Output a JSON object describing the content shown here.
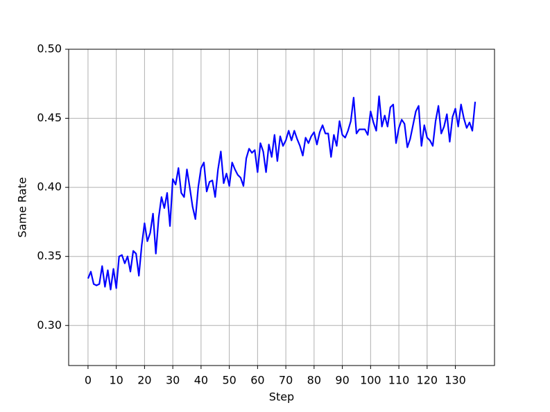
{
  "chart_data": {
    "type": "line",
    "xlabel": "Step",
    "ylabel": "Same Rate",
    "x": [
      0,
      1,
      2,
      3,
      4,
      5,
      6,
      7,
      8,
      9,
      10,
      11,
      12,
      13,
      14,
      15,
      16,
      17,
      18,
      19,
      20,
      21,
      22,
      23,
      24,
      25,
      26,
      27,
      28,
      29,
      30,
      31,
      32,
      33,
      34,
      35,
      36,
      37,
      38,
      39,
      40,
      41,
      42,
      43,
      44,
      45,
      46,
      47,
      48,
      49,
      50,
      51,
      52,
      53,
      54,
      55,
      56,
      57,
      58,
      59,
      60,
      61,
      62,
      63,
      64,
      65,
      66,
      67,
      68,
      69,
      70,
      71,
      72,
      73,
      74,
      75,
      76,
      77,
      78,
      79,
      80,
      81,
      82,
      83,
      84,
      85,
      86,
      87,
      88,
      89,
      90,
      91,
      92,
      93,
      94,
      95,
      96,
      97,
      98,
      99,
      100,
      101,
      102,
      103,
      104,
      105,
      106,
      107,
      108,
      109,
      110,
      111,
      112,
      113,
      114,
      115,
      116,
      117,
      118,
      119,
      120,
      121,
      122,
      123,
      124,
      125,
      126,
      127,
      128,
      129,
      130,
      131,
      132,
      133,
      134,
      135,
      136,
      137
    ],
    "values": [
      0.334,
      0.339,
      0.33,
      0.329,
      0.33,
      0.343,
      0.328,
      0.34,
      0.326,
      0.341,
      0.327,
      0.35,
      0.351,
      0.345,
      0.35,
      0.339,
      0.354,
      0.352,
      0.336,
      0.358,
      0.374,
      0.361,
      0.367,
      0.381,
      0.352,
      0.378,
      0.393,
      0.385,
      0.396,
      0.372,
      0.406,
      0.402,
      0.414,
      0.396,
      0.393,
      0.413,
      0.4,
      0.386,
      0.377,
      0.4,
      0.414,
      0.418,
      0.397,
      0.404,
      0.405,
      0.393,
      0.413,
      0.426,
      0.403,
      0.41,
      0.401,
      0.418,
      0.413,
      0.409,
      0.407,
      0.401,
      0.421,
      0.428,
      0.425,
      0.427,
      0.411,
      0.432,
      0.426,
      0.411,
      0.431,
      0.422,
      0.438,
      0.419,
      0.437,
      0.43,
      0.434,
      0.441,
      0.434,
      0.441,
      0.435,
      0.43,
      0.423,
      0.436,
      0.432,
      0.437,
      0.44,
      0.431,
      0.44,
      0.445,
      0.439,
      0.439,
      0.422,
      0.438,
      0.43,
      0.448,
      0.438,
      0.436,
      0.441,
      0.448,
      0.465,
      0.439,
      0.442,
      0.442,
      0.442,
      0.438,
      0.455,
      0.447,
      0.441,
      0.466,
      0.444,
      0.452,
      0.444,
      0.458,
      0.46,
      0.432,
      0.443,
      0.449,
      0.446,
      0.429,
      0.435,
      0.445,
      0.455,
      0.459,
      0.43,
      0.445,
      0.436,
      0.434,
      0.43,
      0.448,
      0.459,
      0.439,
      0.444,
      0.453,
      0.433,
      0.451,
      0.457,
      0.444,
      0.46,
      0.45,
      0.443,
      0.447,
      0.441,
      0.462
    ],
    "color": "#0000ff",
    "xlim": [
      -6.85,
      143.85
    ],
    "xticks": [
      0,
      10,
      20,
      30,
      40,
      50,
      60,
      70,
      80,
      90,
      100,
      110,
      120,
      130
    ],
    "ylim": [
      0.271,
      0.5
    ],
    "yticks": [
      {
        "value": 0.3,
        "label": "0.30"
      },
      {
        "value": 0.35,
        "label": "0.35"
      },
      {
        "value": 0.4,
        "label": "0.40"
      },
      {
        "value": 0.45,
        "label": "0.45"
      },
      {
        "value": 0.5,
        "label": "0.50"
      }
    ],
    "grid": true
  }
}
